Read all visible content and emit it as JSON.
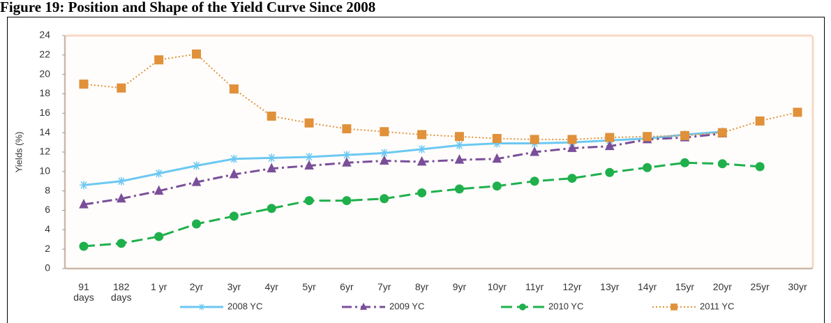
{
  "chart_data": {
    "type": "line",
    "title": "Figure 19: Position and Shape of the Yield Curve Since 2008",
    "y_label": "Yields (%)",
    "categories": [
      "91 days",
      "182 days",
      "1 yr",
      "2yr",
      "3yr",
      "4yr",
      "5yr",
      "6yr",
      "7yr",
      "8yr",
      "9yr",
      "10yr",
      "11yr",
      "12yr",
      "13yr",
      "14yr",
      "15yr",
      "20yr",
      "25yr",
      "30yr"
    ],
    "ylim": [
      0,
      24
    ],
    "yticks": [
      0,
      2,
      4,
      6,
      8,
      10,
      12,
      14,
      16,
      18,
      20,
      22,
      24
    ],
    "legend": "bottom",
    "series": [
      {
        "name": "2008 YC",
        "color": "#6cc8f2",
        "marker": "star",
        "dash": "solid",
        "values": [
          8.6,
          9.0,
          9.8,
          10.6,
          11.3,
          11.4,
          11.5,
          11.7,
          11.9,
          12.3,
          12.7,
          12.9,
          12.9,
          13.0,
          13.2,
          13.4,
          13.8,
          14.1,
          null,
          null
        ]
      },
      {
        "name": "2009 YC",
        "color": "#7a4f9a",
        "marker": "triangle",
        "dash": "dashdot",
        "values": [
          6.6,
          7.2,
          8.0,
          8.9,
          9.7,
          10.3,
          10.6,
          10.9,
          11.1,
          11.0,
          11.2,
          11.3,
          12.0,
          12.4,
          12.6,
          13.3,
          13.5,
          13.9,
          null,
          null
        ]
      },
      {
        "name": "2010 YC",
        "color": "#1fb04c",
        "marker": "circle",
        "dash": "dashed",
        "values": [
          2.3,
          2.6,
          3.3,
          4.6,
          5.4,
          6.2,
          7.0,
          7.0,
          7.2,
          7.8,
          8.2,
          8.5,
          9.0,
          9.3,
          9.9,
          10.4,
          10.9,
          10.8,
          10.5,
          null
        ]
      },
      {
        "name": "2011 YC",
        "color": "#e0913a",
        "marker": "square",
        "dash": "dotted",
        "values": [
          19.0,
          18.6,
          21.5,
          22.1,
          18.5,
          15.7,
          15.0,
          14.4,
          14.1,
          13.8,
          13.6,
          13.4,
          13.3,
          13.3,
          13.5,
          13.6,
          13.7,
          14.0,
          15.2,
          16.1
        ]
      }
    ]
  }
}
